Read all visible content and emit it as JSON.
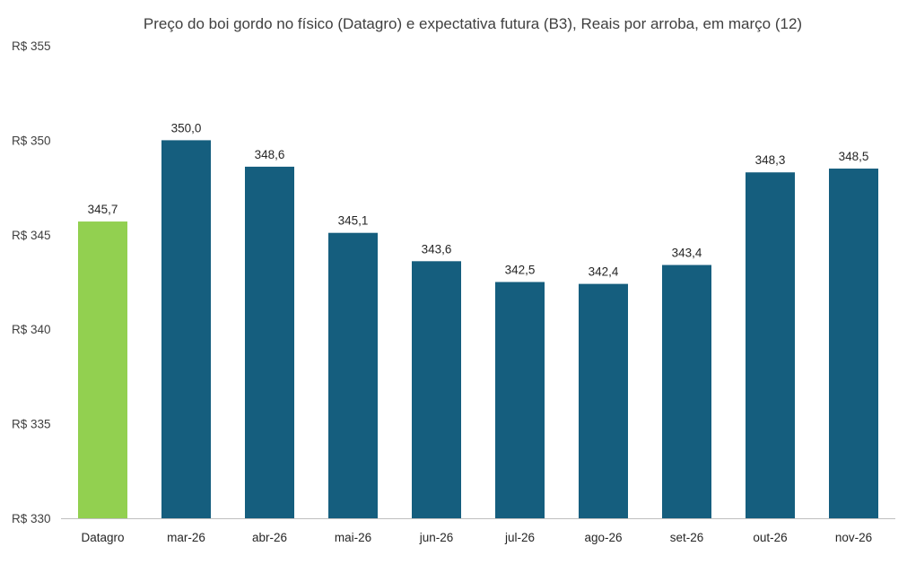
{
  "chart_data": {
    "type": "bar",
    "title": "Preço do boi gordo no físico (Datagro)  e expectativa futura (B3), Reais por arroba, em março (12)",
    "categories": [
      "Datagro",
      "mar-26",
      "abr-26",
      "mai-26",
      "jun-26",
      "jul-26",
      "ago-26",
      "set-26",
      "out-26",
      "nov-26"
    ],
    "values": [
      345.7,
      350.0,
      348.6,
      345.1,
      343.6,
      342.5,
      342.4,
      343.4,
      348.3,
      348.5
    ],
    "value_labels": [
      "345,7",
      "350,0",
      "348,6",
      "345,1",
      "343,6",
      "342,5",
      "342,4",
      "343,4",
      "348,3",
      "348,5"
    ],
    "bar_colors": [
      "#92d050",
      "#155e7e",
      "#155e7e",
      "#155e7e",
      "#155e7e",
      "#155e7e",
      "#155e7e",
      "#155e7e",
      "#155e7e",
      "#155e7e"
    ],
    "ylim": [
      330,
      355
    ],
    "yticks": [
      330,
      335,
      340,
      345,
      350,
      355
    ],
    "ytick_labels": [
      "R$ 330",
      "R$ 335",
      "R$ 340",
      "R$ 345",
      "R$ 350",
      "R$ 355"
    ],
    "xlabel": "",
    "ylabel": "",
    "grid": false,
    "legend": "none"
  }
}
